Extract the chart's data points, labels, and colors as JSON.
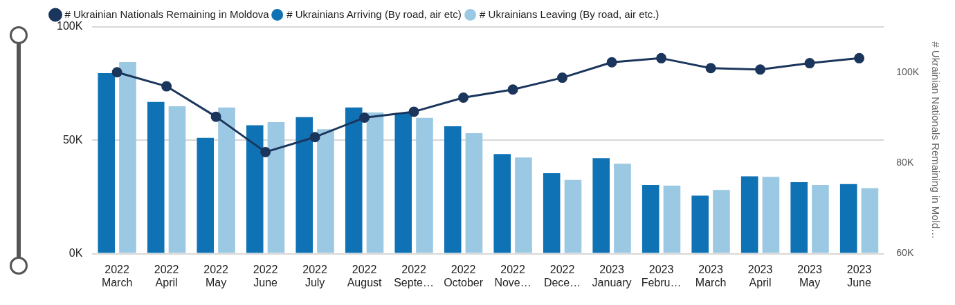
{
  "chart_data": {
    "type": "bar",
    "categories": [
      "2022 March",
      "2022 April",
      "2022 May",
      "2022 June",
      "2022 July",
      "2022 August",
      "2022 Septe…",
      "2022 October",
      "2022 Nove…",
      "2022 Dece…",
      "2023 January",
      "2023 Febru…",
      "2023 March",
      "2023 April",
      "2023 May",
      "2023 June"
    ],
    "series": [
      {
        "name": "# Ukrainians Arriving (By road, air etc)",
        "color": "#0f72b5",
        "values": [
          79600,
          66900,
          51100,
          56600,
          60200,
          64500,
          62000,
          56200,
          43900,
          35500,
          42100,
          30300,
          25600,
          34100,
          31500,
          30700
        ]
      },
      {
        "name": "# Ukrainians Leaving (By road, air etc.)",
        "color": "#9bc8e2",
        "values": [
          84500,
          65000,
          64500,
          58000,
          54900,
          62300,
          59900,
          53100,
          42400,
          32500,
          39700,
          30000,
          28100,
          33900,
          30300,
          28900
        ]
      },
      {
        "name": "# Ukrainian Nationals Remaining in Moldova",
        "type": "line",
        "axis": "y2",
        "color": "#1b365d",
        "values": [
          100000,
          96900,
          90200,
          82400,
          85700,
          90000,
          91300,
          94400,
          96200,
          98800,
          102200,
          103100,
          100900,
          100600,
          102000,
          103100
        ]
      }
    ],
    "ylim": [
      0,
      100000
    ],
    "yticks": [
      {
        "value": 0,
        "label": "0K"
      },
      {
        "value": 50000,
        "label": "50K"
      },
      {
        "value": 100000,
        "label": "100K"
      }
    ],
    "y2label": "# Ukrainian Nationals Remaining in Mold…",
    "y2lim": [
      60000,
      110000
    ],
    "y2ticks": [
      {
        "value": 60000,
        "label": "60K"
      },
      {
        "value": 80000,
        "label": "80K"
      },
      {
        "value": 100000,
        "label": "100K"
      }
    ],
    "grid": "y",
    "legend": "top left",
    "marker": "circle",
    "line_style": "solid"
  }
}
